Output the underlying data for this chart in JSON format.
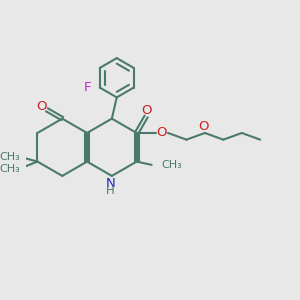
{
  "bg_color": "#e8e8e8",
  "bond_color": "#4a7a6a",
  "N_color": "#2222cc",
  "O_color": "#cc2222",
  "F_color": "#cc22cc",
  "line_width": 1.5,
  "font_size": 8.5,
  "xlim": [
    0,
    10
  ],
  "ylim": [
    0,
    10
  ]
}
